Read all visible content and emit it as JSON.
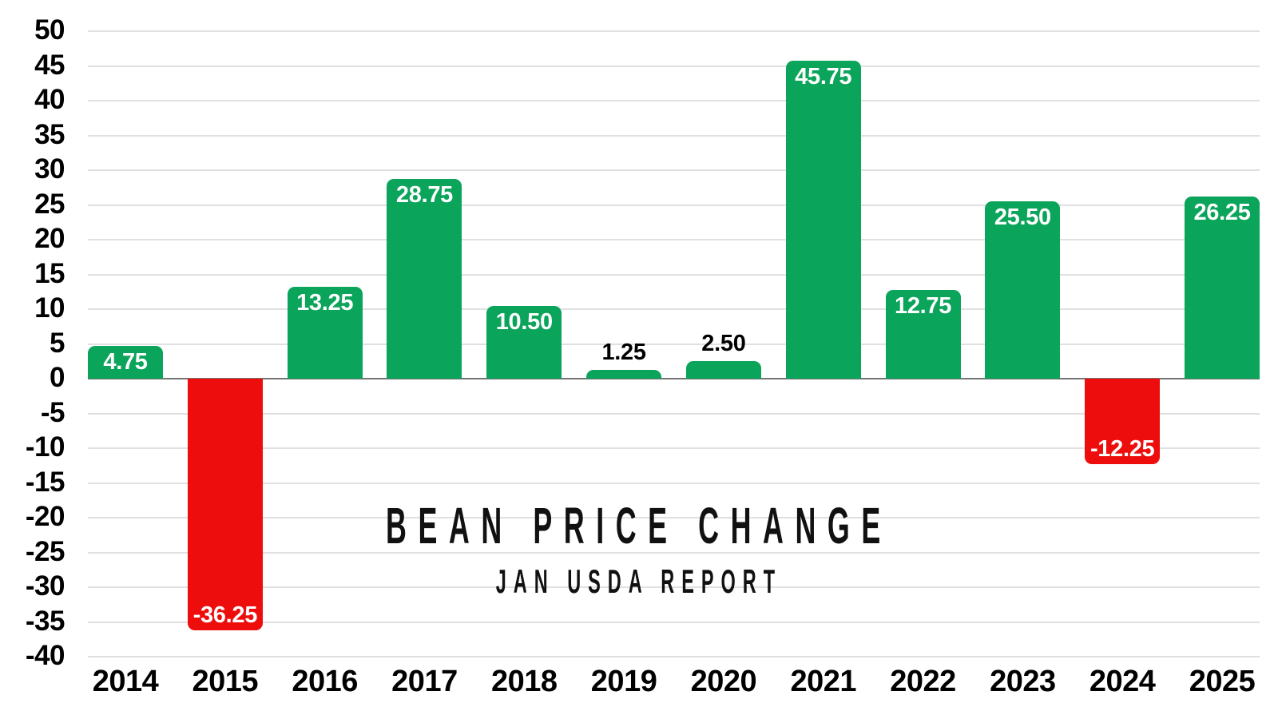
{
  "chart_data": {
    "type": "bar",
    "title": "BEAN PRICE CHANGE",
    "subtitle": "JAN USDA REPORT",
    "categories": [
      "2014",
      "2015",
      "2016",
      "2017",
      "2018",
      "2019",
      "2020",
      "2021",
      "2022",
      "2023",
      "2024",
      "2025"
    ],
    "values": [
      4.75,
      -36.25,
      13.25,
      28.75,
      10.5,
      1.25,
      2.5,
      45.75,
      12.75,
      25.5,
      -12.25,
      26.25
    ],
    "value_labels": [
      "4.75",
      "-36.25",
      "13.25",
      "28.75",
      "10.50",
      "1.25",
      "2.50",
      "45.75",
      "12.75",
      "25.50",
      "-12.25",
      "26.25"
    ],
    "ylim": [
      -40,
      50
    ],
    "yticks": [
      50,
      45,
      40,
      35,
      30,
      25,
      20,
      15,
      10,
      5,
      0,
      -5,
      -10,
      -15,
      -20,
      -25,
      -30,
      -35,
      -40
    ],
    "grid": true,
    "legend": "none",
    "colors": {
      "positive_bar": "#0ba45b",
      "negative_bar": "#ee0d0d",
      "inside_label": "#ffffff",
      "outside_label": "#000000",
      "gridline": "#e0e0e0",
      "zero_line": "#757575",
      "axis_text": "#000000",
      "background": "#ffffff"
    }
  }
}
